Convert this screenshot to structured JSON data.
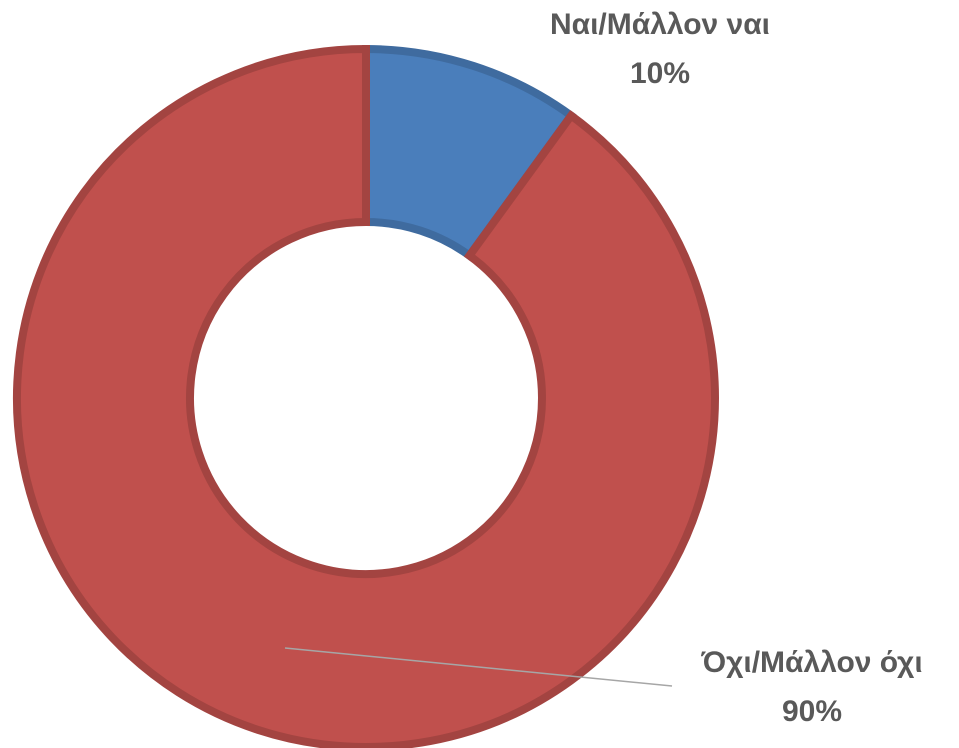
{
  "chart_data": {
    "type": "donut",
    "categories": [
      "Ναι/Μάλλον ναι",
      "Όχι/Μάλλον όχι"
    ],
    "values": [
      10,
      90
    ],
    "value_labels": [
      "10%",
      "90%"
    ],
    "colors": [
      "#4a7ebb",
      "#c0504d"
    ]
  }
}
